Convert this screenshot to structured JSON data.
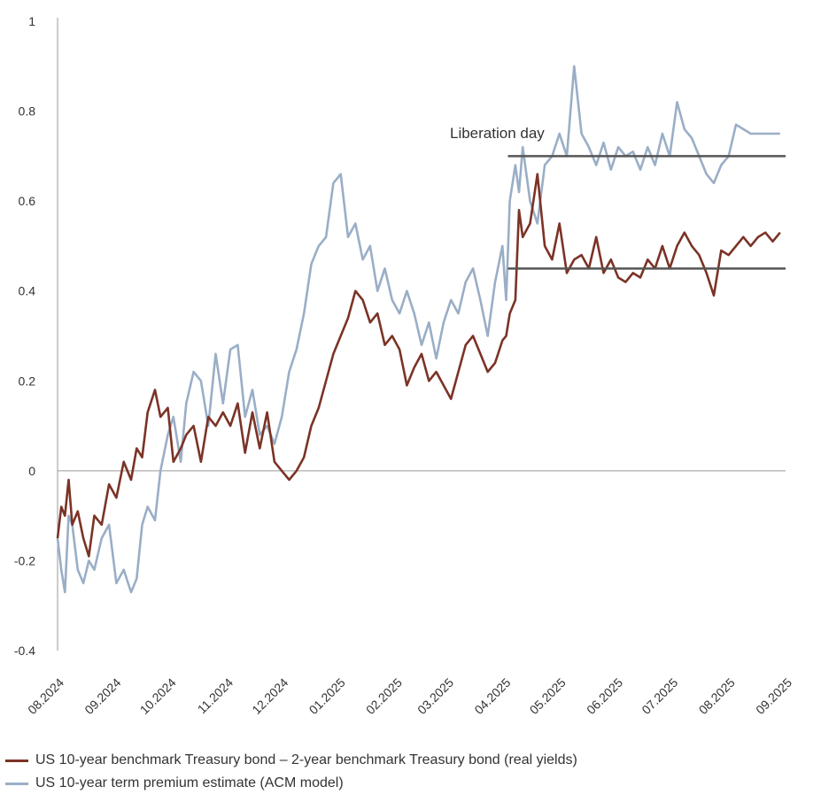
{
  "chart_data": {
    "type": "line",
    "title": "",
    "xlabel": "",
    "ylabel": "",
    "ylim": [
      -0.4,
      1
    ],
    "xlim": [
      "2024-08-01",
      "2025-09-01"
    ],
    "y_ticks": [
      "1",
      "0.8",
      "0.6",
      "0.4",
      "0.2",
      "0",
      "-0.2",
      "-0.4"
    ],
    "x_ticks": [
      "08.2024",
      "09.2024",
      "10.2024",
      "11.2024",
      "12.2024",
      "01.2025",
      "02.2025",
      "03.2025",
      "04.2025",
      "05.2025",
      "06.2025",
      "07.2025",
      "08.2025",
      "09.2025"
    ],
    "grid": false,
    "legend_position": "bottom-left",
    "annotations": [
      {
        "text": "Liberation day",
        "date": "2025-04-02",
        "level_high": 0.7,
        "level_low": 0.45
      }
    ],
    "series": [
      {
        "name": "US 10-year benchmark Treasury bond – 2-year benchmark Treasury bond (real yields)",
        "color": "#7b3326",
        "x": [
          "2024-08-01",
          "2024-08-03",
          "2024-08-05",
          "2024-08-07",
          "2024-08-09",
          "2024-08-12",
          "2024-08-15",
          "2024-08-18",
          "2024-08-21",
          "2024-08-25",
          "2024-08-29",
          "2024-09-02",
          "2024-09-06",
          "2024-09-10",
          "2024-09-13",
          "2024-09-16",
          "2024-09-19",
          "2024-09-23",
          "2024-09-26",
          "2024-09-30",
          "2024-10-03",
          "2024-10-07",
          "2024-10-10",
          "2024-10-14",
          "2024-10-18",
          "2024-10-22",
          "2024-10-26",
          "2024-10-30",
          "2024-11-03",
          "2024-11-07",
          "2024-11-11",
          "2024-11-15",
          "2024-11-19",
          "2024-11-23",
          "2024-11-27",
          "2024-12-01",
          "2024-12-05",
          "2024-12-09",
          "2024-12-13",
          "2024-12-17",
          "2024-12-21",
          "2024-12-25",
          "2024-12-29",
          "2025-01-02",
          "2025-01-06",
          "2025-01-10",
          "2025-01-14",
          "2025-01-18",
          "2025-01-22",
          "2025-01-26",
          "2025-01-30",
          "2025-02-03",
          "2025-02-07",
          "2025-02-11",
          "2025-02-15",
          "2025-02-19",
          "2025-02-23",
          "2025-02-27",
          "2025-03-03",
          "2025-03-07",
          "2025-03-11",
          "2025-03-15",
          "2025-03-19",
          "2025-03-23",
          "2025-03-27",
          "2025-03-31",
          "2025-04-02",
          "2025-04-04",
          "2025-04-07",
          "2025-04-09",
          "2025-04-11",
          "2025-04-15",
          "2025-04-19",
          "2025-04-23",
          "2025-04-27",
          "2025-05-01",
          "2025-05-05",
          "2025-05-09",
          "2025-05-13",
          "2025-05-17",
          "2025-05-21",
          "2025-05-25",
          "2025-05-29",
          "2025-06-02",
          "2025-06-06",
          "2025-06-10",
          "2025-06-14",
          "2025-06-18",
          "2025-06-22",
          "2025-06-26",
          "2025-06-30",
          "2025-07-04",
          "2025-07-08",
          "2025-07-12",
          "2025-07-16",
          "2025-07-20",
          "2025-07-24",
          "2025-07-28",
          "2025-08-01",
          "2025-08-05",
          "2025-08-09",
          "2025-08-13",
          "2025-08-17",
          "2025-08-21",
          "2025-08-25",
          "2025-08-29"
        ],
        "values": [
          -0.15,
          -0.08,
          -0.1,
          -0.02,
          -0.12,
          -0.09,
          -0.15,
          -0.19,
          -0.1,
          -0.12,
          -0.03,
          -0.06,
          0.02,
          -0.02,
          0.05,
          0.03,
          0.13,
          0.18,
          0.12,
          0.14,
          0.02,
          0.05,
          0.08,
          0.1,
          0.02,
          0.12,
          0.1,
          0.13,
          0.1,
          0.15,
          0.04,
          0.13,
          0.05,
          0.13,
          0.02,
          0.0,
          -0.02,
          0.0,
          0.03,
          0.1,
          0.14,
          0.2,
          0.26,
          0.3,
          0.34,
          0.4,
          0.38,
          0.33,
          0.35,
          0.28,
          0.3,
          0.27,
          0.19,
          0.23,
          0.26,
          0.2,
          0.22,
          0.19,
          0.16,
          0.22,
          0.28,
          0.3,
          0.26,
          0.22,
          0.24,
          0.29,
          0.3,
          0.35,
          0.38,
          0.58,
          0.52,
          0.55,
          0.66,
          0.5,
          0.47,
          0.55,
          0.44,
          0.47,
          0.48,
          0.45,
          0.52,
          0.44,
          0.47,
          0.43,
          0.42,
          0.44,
          0.43,
          0.47,
          0.45,
          0.5,
          0.45,
          0.5,
          0.53,
          0.5,
          0.48,
          0.44,
          0.39,
          0.49,
          0.48,
          0.5,
          0.52,
          0.5,
          0.52,
          0.53,
          0.51,
          0.53
        ]
      },
      {
        "name": "US 10-year term premium estimate (ACM model)",
        "color": "#9aaec6",
        "x": [
          "2024-08-01",
          "2024-08-03",
          "2024-08-05",
          "2024-08-07",
          "2024-08-09",
          "2024-08-12",
          "2024-08-15",
          "2024-08-18",
          "2024-08-21",
          "2024-08-25",
          "2024-08-29",
          "2024-09-02",
          "2024-09-06",
          "2024-09-10",
          "2024-09-13",
          "2024-09-16",
          "2024-09-19",
          "2024-09-23",
          "2024-09-26",
          "2024-09-30",
          "2024-10-03",
          "2024-10-07",
          "2024-10-10",
          "2024-10-14",
          "2024-10-18",
          "2024-10-22",
          "2024-10-26",
          "2024-10-30",
          "2024-11-03",
          "2024-11-07",
          "2024-11-11",
          "2024-11-15",
          "2024-11-19",
          "2024-11-23",
          "2024-11-27",
          "2024-12-01",
          "2024-12-05",
          "2024-12-09",
          "2024-12-13",
          "2024-12-17",
          "2024-12-21",
          "2024-12-25",
          "2024-12-29",
          "2025-01-02",
          "2025-01-06",
          "2025-01-10",
          "2025-01-14",
          "2025-01-18",
          "2025-01-22",
          "2025-01-26",
          "2025-01-30",
          "2025-02-03",
          "2025-02-07",
          "2025-02-11",
          "2025-02-15",
          "2025-02-19",
          "2025-02-23",
          "2025-02-27",
          "2025-03-03",
          "2025-03-07",
          "2025-03-11",
          "2025-03-15",
          "2025-03-19",
          "2025-03-23",
          "2025-03-27",
          "2025-03-31",
          "2025-04-02",
          "2025-04-04",
          "2025-04-07",
          "2025-04-09",
          "2025-04-11",
          "2025-04-15",
          "2025-04-19",
          "2025-04-23",
          "2025-04-27",
          "2025-05-01",
          "2025-05-05",
          "2025-05-09",
          "2025-05-13",
          "2025-05-17",
          "2025-05-21",
          "2025-05-25",
          "2025-05-29",
          "2025-06-02",
          "2025-06-06",
          "2025-06-10",
          "2025-06-14",
          "2025-06-18",
          "2025-06-22",
          "2025-06-26",
          "2025-06-30",
          "2025-07-04",
          "2025-07-08",
          "2025-07-12",
          "2025-07-16",
          "2025-07-20",
          "2025-07-24",
          "2025-07-28",
          "2025-08-01",
          "2025-08-05",
          "2025-08-09",
          "2025-08-13",
          "2025-08-17",
          "2025-08-21",
          "2025-08-25",
          "2025-08-29"
        ],
        "values": [
          -0.15,
          -0.22,
          -0.27,
          -0.1,
          -0.12,
          -0.22,
          -0.25,
          -0.2,
          -0.22,
          -0.15,
          -0.12,
          -0.25,
          -0.22,
          -0.27,
          -0.24,
          -0.12,
          -0.08,
          -0.11,
          0.0,
          0.08,
          0.12,
          0.02,
          0.15,
          0.22,
          0.2,
          0.1,
          0.26,
          0.15,
          0.27,
          0.28,
          0.12,
          0.18,
          0.08,
          0.1,
          0.06,
          0.12,
          0.22,
          0.27,
          0.35,
          0.46,
          0.5,
          0.52,
          0.64,
          0.66,
          0.52,
          0.55,
          0.47,
          0.5,
          0.4,
          0.45,
          0.38,
          0.35,
          0.4,
          0.35,
          0.28,
          0.33,
          0.25,
          0.33,
          0.38,
          0.35,
          0.42,
          0.45,
          0.38,
          0.3,
          0.42,
          0.5,
          0.38,
          0.6,
          0.68,
          0.62,
          0.72,
          0.6,
          0.55,
          0.68,
          0.7,
          0.75,
          0.7,
          0.9,
          0.75,
          0.72,
          0.68,
          0.73,
          0.67,
          0.72,
          0.7,
          0.71,
          0.67,
          0.72,
          0.68,
          0.75,
          0.7,
          0.82,
          0.76,
          0.74,
          0.7,
          0.66,
          0.64,
          0.68,
          0.7,
          0.77,
          0.76,
          0.75,
          0.75,
          0.75,
          0.75,
          0.75
        ]
      }
    ]
  },
  "legend": {
    "item1": "US 10-year benchmark Treasury bond – 2-year benchmark Treasury bond (real yields)",
    "item2": "US 10-year term premium estimate (ACM model)"
  }
}
